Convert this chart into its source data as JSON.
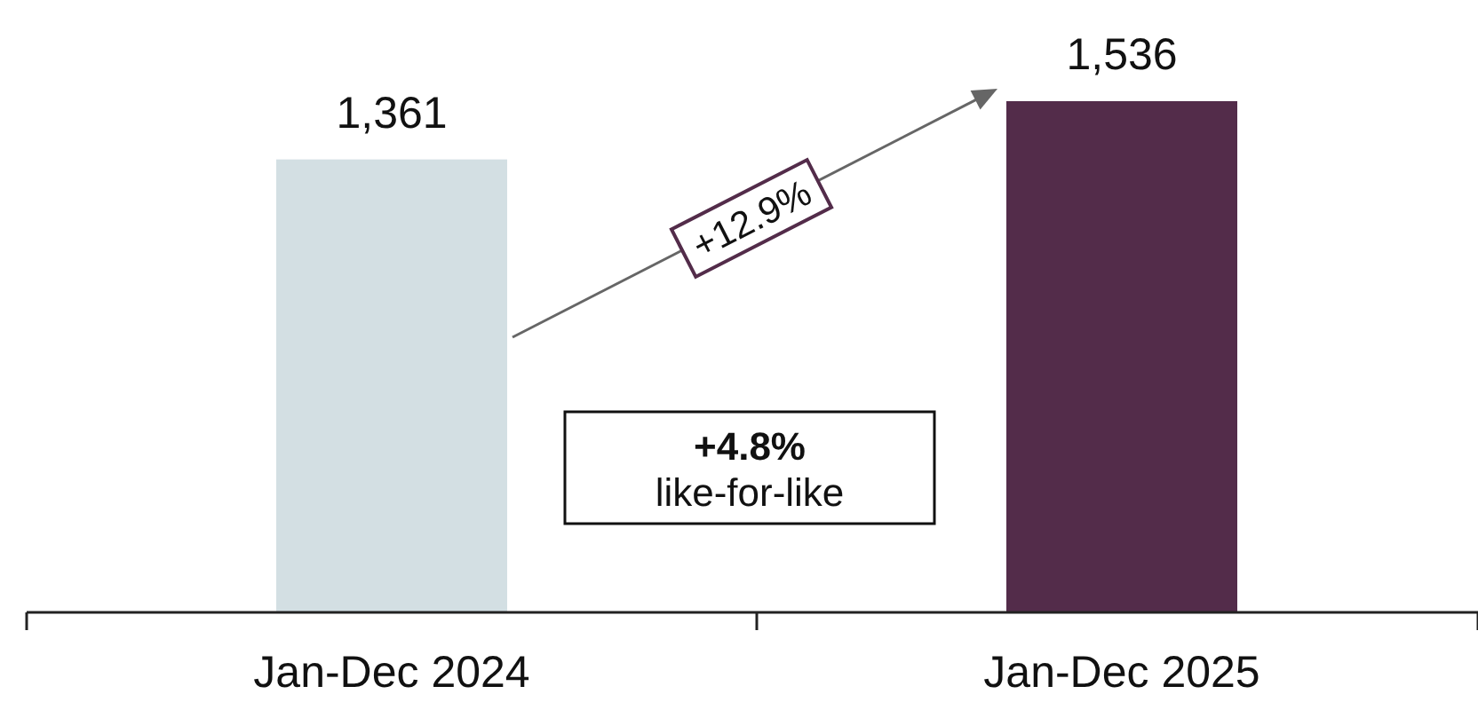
{
  "chart_data": {
    "type": "bar",
    "categories": [
      "Jan-Dec 2024",
      "Jan-Dec 2025"
    ],
    "values": [
      1361,
      1536
    ],
    "colors": [
      "#d3dfe3",
      "#532c4a"
    ],
    "value_labels": [
      "1,361",
      "1,536"
    ],
    "tick_labels": "x",
    "annotations": [
      "+12.9%",
      "+4.8%",
      "like-for-like"
    ]
  }
}
